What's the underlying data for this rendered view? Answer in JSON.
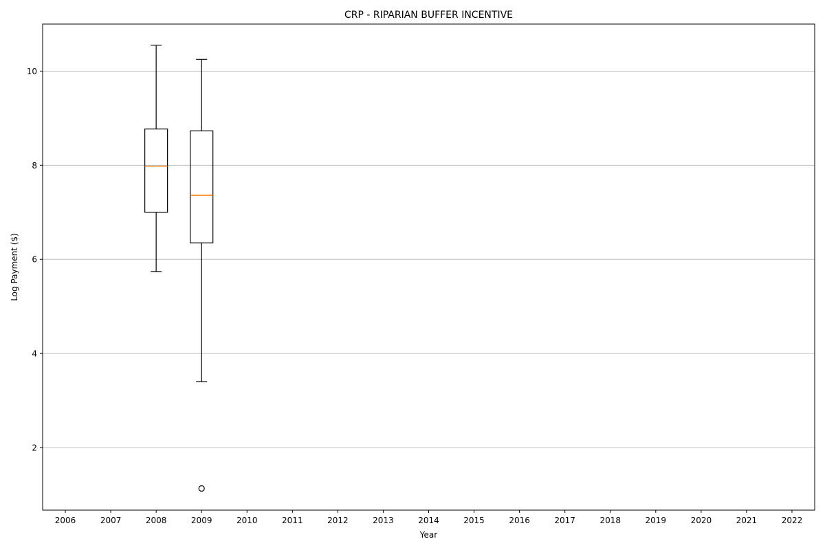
{
  "chart_data": {
    "type": "box",
    "title": "CRP - RIPARIAN BUFFER INCENTIVE",
    "xlabel": "Year",
    "ylabel": "Log Payment ($)",
    "categories": [
      "2006",
      "2007",
      "2008",
      "2009",
      "2010",
      "2011",
      "2012",
      "2013",
      "2014",
      "2015",
      "2016",
      "2017",
      "2018",
      "2019",
      "2020",
      "2021",
      "2022"
    ],
    "ylim": [
      0.67,
      11.0
    ],
    "yticks": [
      2,
      4,
      6,
      8,
      10
    ],
    "grid": "y",
    "boxes": [
      {
        "category": "2008",
        "whisker_low": 5.74,
        "q1": 7.0,
        "median": 7.98,
        "q3": 8.77,
        "whisker_high": 10.55,
        "outliers": []
      },
      {
        "category": "2009",
        "whisker_low": 3.4,
        "q1": 6.35,
        "median": 7.36,
        "q3": 8.73,
        "whisker_high": 10.25,
        "outliers": [
          1.13
        ]
      }
    ],
    "colors": {
      "box": "#000000",
      "median": "#ff7f0e",
      "grid": "#b0b0b0"
    }
  }
}
